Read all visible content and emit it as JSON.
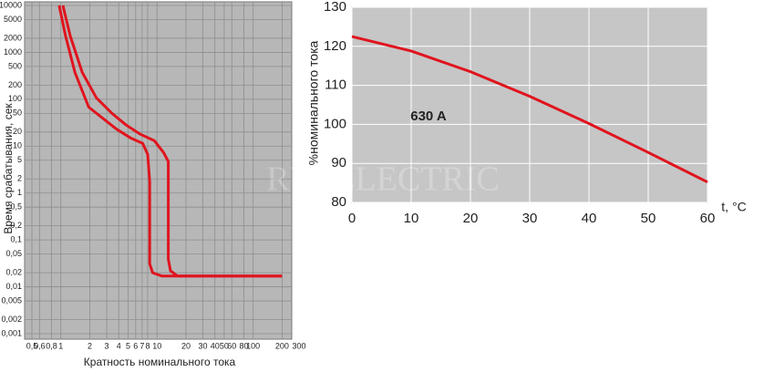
{
  "chart_data": [
    {
      "type": "line",
      "xlabel": "Кратность номинального тока",
      "ylabel": "Время срабатывания, сек",
      "xscale": "log",
      "yscale": "log",
      "grid": true,
      "xlim": [
        0.5,
        300
      ],
      "ylim": [
        0.001,
        10000
      ],
      "xticks": [
        {
          "value": 0.5,
          "label": "0,5"
        },
        {
          "value": 0.6,
          "label": "0,6"
        },
        {
          "value": 0.8,
          "label": "0,8"
        },
        1,
        2,
        3,
        4,
        5,
        6,
        7,
        8,
        10,
        20,
        30,
        40,
        50,
        60,
        80,
        100,
        200,
        300
      ],
      "yticks": [
        10000,
        5000,
        2000,
        1000,
        500,
        200,
        100,
        50,
        20,
        10,
        5,
        2,
        1,
        {
          "value": 0.5,
          "label": "0,5"
        },
        {
          "value": 0.2,
          "label": "0,2"
        },
        {
          "value": 0.1,
          "label": "0,1"
        },
        {
          "value": 0.05,
          "label": "0,05"
        },
        {
          "value": 0.02,
          "label": "0,02"
        },
        {
          "value": 0.01,
          "label": "0,01"
        },
        {
          "value": 0.005,
          "label": "0,005"
        },
        {
          "value": 0.002,
          "label": "0,002"
        },
        {
          "value": 0.001,
          "label": "0,001"
        }
      ],
      "series": [
        {
          "color": "#e0141e",
          "x": [
            0.96,
            1.12,
            1.4,
            1.95,
            2.7,
            3.8,
            5.3,
            7.1,
            8,
            8.4,
            8.4,
            9,
            11.2,
            200
          ],
          "values": [
            10000,
            2240,
            374,
            68,
            40,
            23,
            15,
            11.5,
            6.7,
            1.75,
            0.031,
            0.02,
            0.017,
            0.017
          ]
        },
        {
          "color": "#e0141e",
          "x": [
            1.05,
            1.25,
            1.67,
            2.34,
            3.4,
            4.8,
            6.7,
            9.4,
            11.7,
            13.1,
            13.1,
            13.8,
            16.3,
            200
          ],
          "values": [
            10000,
            2240,
            374,
            107,
            50,
            28,
            18,
            13,
            7.3,
            4.7,
            0.039,
            0.022,
            0.017,
            0.017
          ]
        }
      ]
    },
    {
      "type": "line",
      "xlabel": "t, °C",
      "ylabel": "%номинального тока",
      "grid": true,
      "xlim": [
        0,
        60
      ],
      "ylim": [
        80,
        130
      ],
      "xticks": [
        0,
        10,
        20,
        30,
        40,
        50,
        60
      ],
      "yticks": [
        80,
        90,
        100,
        110,
        120,
        130
      ],
      "annotations": [
        "630 A"
      ],
      "watermark": "RUSELECTRIC",
      "x": [
        0,
        10,
        20,
        30,
        40,
        50,
        60
      ],
      "series": [
        {
          "color": "#e0141e",
          "values": [
            122.5,
            118.8,
            113.5,
            107.2,
            100.2,
            92.8,
            85.2
          ]
        }
      ]
    }
  ]
}
